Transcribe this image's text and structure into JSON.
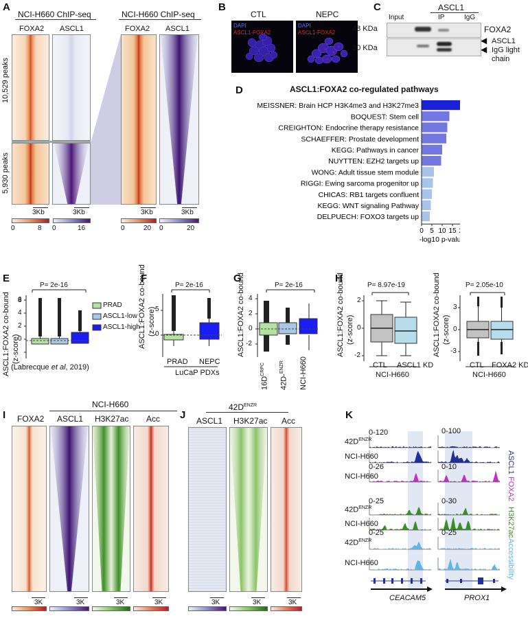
{
  "panels": {
    "A": {
      "letter": "A",
      "title_left": "NCI-H660 ChIP-seq",
      "title_right": "NCI-H660 ChIP-seq",
      "col1": "FOXA2",
      "col2": "ASCL1",
      "col3": "FOXA2",
      "col4": "ASCL1",
      "peaks_top": "10,529 peaks",
      "peaks_bottom": "5,930 peaks",
      "scale": "3Kb",
      "ticks": {
        "foxa2": [
          "0",
          "8"
        ],
        "ascl1": [
          "0",
          "16"
        ],
        "foxa2_r": [
          "0",
          "20"
        ],
        "ascl1_r": [
          "0",
          "20"
        ]
      }
    },
    "B": {
      "letter": "B",
      "ctl": "CTL",
      "nepc": "NEPC",
      "dapi": "DAPI",
      "ascl1_foxa2": "ASCL1-FOXA2"
    },
    "C": {
      "letter": "C",
      "header": "ASCL1",
      "lanes": [
        "Input",
        "IP",
        "IgG"
      ],
      "mw1": "48 KDa",
      "mw2": "30 KDa",
      "label1": "FOXA2",
      "label2": "ASCL1",
      "label3a": "IgG light",
      "label3b": "chain"
    },
    "D": {
      "letter": "D",
      "title": "ASCL1:FOXA2 co-regulated pathways",
      "xlabel": "-log10 p-value"
    },
    "E": {
      "letter": "E",
      "pval": "P= 2e-16",
      "ylabel1": "ASCL1:FOXA2 co-bound",
      "ylabel2": "(z-score)",
      "legend": [
        "PRAD",
        "ASCL1-low",
        "ASCL1-high"
      ],
      "yticks": [
        "0",
        "2",
        "4",
        "6",
        "8"
      ],
      "citation_pre": "(Labrecque ",
      "citation_em": "et al",
      "citation_post": ", 2019)"
    },
    "F": {
      "letter": "F",
      "pval": "P= 2e-16",
      "ylabel1": "ASCL1:FOXA2 co-bound",
      "ylabel2": "(z-score)",
      "yticks": [
        "0",
        "5"
      ],
      "cats": [
        "PRAD",
        "NEPC"
      ],
      "group": "LuCaP PDXs"
    },
    "G": {
      "letter": "G",
      "pval": "P= 2e-16",
      "ylabel": "ASCL1:FOXA2 co-bound",
      "yticks": [
        "-2",
        "0",
        "2",
        "4"
      ],
      "cat1": "16D",
      "cat1_sup": "CRPC",
      "cat2": "42D-",
      "cat2_sup": "ENZR",
      "cat3": "NCI-H660"
    },
    "H": {
      "letter": "H",
      "pval1": "P= 8.97e-19",
      "pval2": "P= 2.05e-10",
      "ylabel1": "ASCL1:FOXA2 co-bound",
      "ylabel2": "(z-score)",
      "yticks1": [
        "-2",
        "0",
        "2"
      ],
      "yticks2": [
        "-3",
        "0",
        "3"
      ],
      "cats1": [
        "CTL",
        "ASCL1 KD"
      ],
      "cats2": [
        "CTL",
        "FOXA2 KD"
      ],
      "group": "NCI-H660"
    },
    "I": {
      "letter": "I",
      "group": "NCI-H660",
      "cols": [
        "FOXA2",
        "ASCL1",
        "H3K27ac",
        "Acc"
      ],
      "scale": "3K"
    },
    "J": {
      "letter": "J",
      "group": "42D",
      "group_sup": "ENZR",
      "cols": [
        "ASCL1",
        "H3K27ac",
        "Acc"
      ],
      "scale": "3K"
    },
    "K": {
      "letter": "K",
      "ranges_left": [
        "0-120",
        "0-26",
        "0-25",
        "0-25"
      ],
      "ranges_right": [
        "0-100",
        "0-10",
        "0-30",
        "0-25"
      ],
      "row_42d": "42D",
      "row_42d_sup": "ENZR",
      "row_h660": "NCI-H660",
      "side_labels": [
        "ASCL1",
        "FOXA2",
        "H3K27ac",
        "Accessibility"
      ],
      "gene_left": "CEACAM5",
      "gene_right": "PROX1"
    }
  },
  "chart_data": [
    {
      "type": "bar",
      "title": "ASCL1:FOXA2 co-regulated pathways",
      "xlabel": "-log10 p-value",
      "categories": [
        "MEISSNER: Brain HCP H3K4me3 and H3K27me3",
        "BOQUEST: Stem cell",
        "CREIGHTON: Endocrine therapy resistance",
        "SCHAEFFER: Prostate development",
        "KEGG: Pathways in cancer",
        "NUYTTEN: EZH2 targets up",
        "WONG: Adult tissue stem module",
        "RIGGI: Ewing sarcoma progenitor up",
        "CHICAS: RB1 targets confluent",
        "KEGG: WNT signaling Pathway",
        "DELPUECH: FOXO3 targets up"
      ],
      "values": [
        21,
        13.5,
        12.5,
        12,
        10,
        9.5,
        6,
        5.5,
        5,
        4.5,
        4
      ],
      "xticks": [
        "0",
        "5",
        "10",
        "15",
        "20"
      ],
      "xlim": [
        0,
        22
      ]
    }
  ],
  "colors": {
    "bar_dark": "#1a22d8",
    "bar_mid": "#7378e0",
    "bar_light": "#a9c4ea",
    "prad": "#b5e2a2",
    "ascl1_low": "#a9c8e6",
    "ascl1_high": "#1b1ef2",
    "ctl_box": "#c2c2c2",
    "kd_box": "#b7dcec"
  }
}
